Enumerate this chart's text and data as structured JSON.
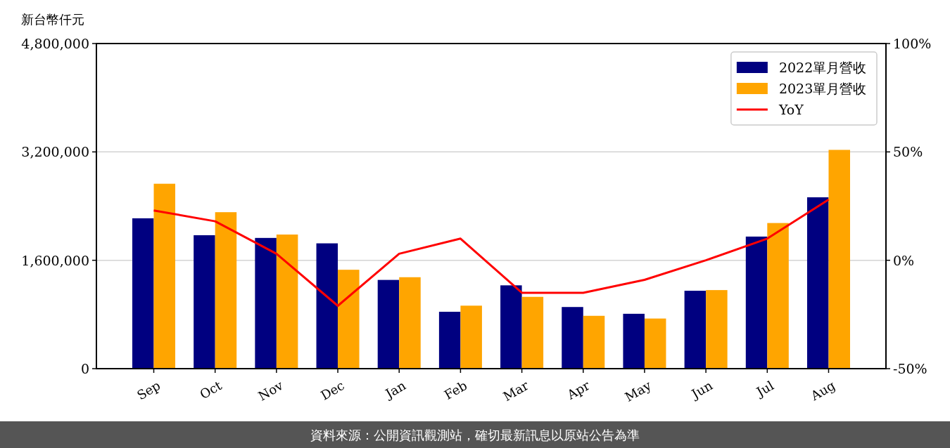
{
  "chart_data": {
    "type": "bar",
    "ylabel": "新台幣仟元",
    "categories": [
      "Sep",
      "Oct",
      "Nov",
      "Dec",
      "Jan",
      "Feb",
      "Mar",
      "Apr",
      "May",
      "Jun",
      "Jul",
      "Aug"
    ],
    "series": [
      {
        "name": "2022單月營收",
        "color": "#000080",
        "values": [
          2220000,
          1970000,
          1930000,
          1850000,
          1310000,
          840000,
          1230000,
          910000,
          810000,
          1150000,
          1950000,
          2530000
        ]
      },
      {
        "name": "2023單月營收",
        "color": "#ffa500",
        "values": [
          2730000,
          2310000,
          1980000,
          1460000,
          1350000,
          930000,
          1060000,
          780000,
          740000,
          1160000,
          2150000,
          3230000
        ]
      },
      {
        "name": "YoY",
        "type": "line",
        "axis": "y2",
        "color": "#ff0000",
        "values": [
          23,
          18,
          3,
          -21,
          3,
          10,
          -15,
          -15,
          -9,
          0,
          10,
          28
        ]
      }
    ],
    "ylim": [
      0,
      4800000
    ],
    "yticks": [
      {
        "value": 0,
        "label": "0"
      },
      {
        "value": 1600000,
        "label": "1,600,000"
      },
      {
        "value": 3200000,
        "label": "3,200,000"
      },
      {
        "value": 4800000,
        "label": "4,800,000"
      }
    ],
    "y2lim": [
      -50,
      100
    ],
    "y2ticks": [
      {
        "value": -50,
        "label": "-50%"
      },
      {
        "value": 0,
        "label": "0%"
      },
      {
        "value": 50,
        "label": "50%"
      },
      {
        "value": 100,
        "label": "100%"
      }
    ],
    "grid": "y",
    "legend": "top right",
    "annotations": [
      "資料來源：公開資訊觀測站，確切最新訊息以原站公告為準"
    ]
  }
}
